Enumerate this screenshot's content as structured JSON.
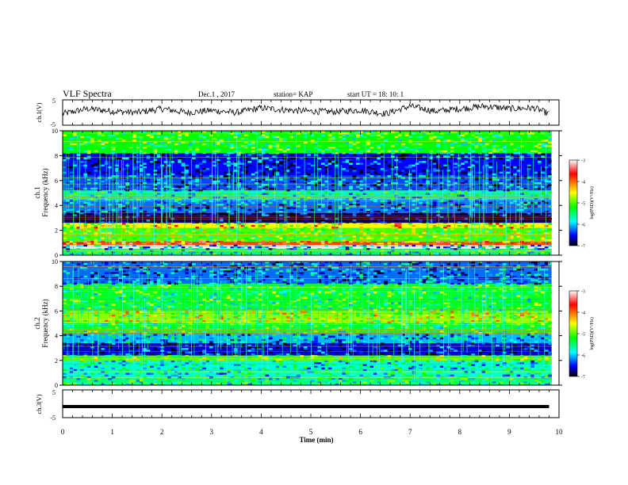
{
  "header": {
    "title": "VLF Spectra",
    "date": "Dec.1 , 2017",
    "station": "station= KAP",
    "start": "start  UT =  18: 10: 1"
  },
  "xaxis": {
    "label": "Time (min)",
    "ticks": [
      "0",
      "1",
      "2",
      "3",
      "4",
      "5",
      "6",
      "7",
      "8",
      "9",
      "10"
    ]
  },
  "ch1v": {
    "label": "ch.1(V)",
    "ticks": {
      "top": "5",
      "bottom": "-5"
    }
  },
  "spec1": {
    "channel": "ch.1",
    "ylabel": "Frequency (kHz)",
    "ticks": [
      "0",
      "2",
      "4",
      "6",
      "8",
      "10"
    ]
  },
  "spec2": {
    "channel": "ch.2",
    "ylabel": "Frequency (kHz)",
    "ticks": [
      "0",
      "2",
      "4",
      "6",
      "8",
      "10"
    ]
  },
  "ch3v": {
    "label": "ch.3(V)",
    "ticks": {
      "top": "5",
      "bottom": "-5"
    }
  },
  "colorbar": {
    "label": "log(PSD)(V²/Hz)",
    "ticks": [
      "-3",
      "-4",
      "-5",
      "-6",
      "-7"
    ],
    "colors": [
      "#ffffff",
      "#ff0000",
      "#ffff00",
      "#00ff00",
      "#00ffff",
      "#0000ff",
      "#000000"
    ]
  },
  "chart_data": [
    {
      "type": "line",
      "title": "VLF Spectra",
      "ylabel": "ch.1(V)",
      "xlabel": "Time (min)",
      "xlim": [
        0,
        10
      ],
      "ylim": [
        -5,
        5
      ],
      "x": [
        0,
        0.5,
        1,
        1.5,
        2,
        2.5,
        3,
        3.5,
        4,
        4.5,
        5,
        5.5,
        6,
        6.5,
        7,
        7.5,
        8,
        8.5,
        9,
        9.5,
        9.8
      ],
      "values": [
        -0.5,
        1.5,
        0.5,
        0,
        1.5,
        0,
        0.8,
        0,
        1.8,
        1,
        0.5,
        0.3,
        1,
        -0.5,
        2.5,
        0.5,
        1.5,
        2.5,
        1.5,
        1.8,
        -0.5
      ]
    },
    {
      "type": "heatmap",
      "ylabel": "ch.1 Frequency (kHz)",
      "xlim": [
        0,
        10
      ],
      "ylim": [
        0,
        10
      ],
      "colorbar_range": [
        -7,
        -3
      ],
      "bands_khz": [
        {
          "from": 0,
          "to": 0.5,
          "log_psd": -5.5
        },
        {
          "from": 0.8,
          "to": 1.1,
          "log_psd": -4
        },
        {
          "from": 1.1,
          "to": 2.2,
          "log_psd": -5
        },
        {
          "from": 2.2,
          "to": 2.6,
          "log_psd": -4.5
        },
        {
          "from": 2.6,
          "to": 3.4,
          "log_psd": -6.8
        },
        {
          "from": 3.4,
          "to": 4.5,
          "log_psd": -6.2
        },
        {
          "from": 4.5,
          "to": 5.2,
          "log_psd": -5.6
        },
        {
          "from": 5.2,
          "to": 6.4,
          "log_psd": -6.3
        },
        {
          "from": 6.4,
          "to": 8.2,
          "log_psd": -6.5
        },
        {
          "from": 8.2,
          "to": 10,
          "log_psd": -5.2
        }
      ]
    },
    {
      "type": "heatmap",
      "ylabel": "ch.2 Frequency (kHz)",
      "xlim": [
        0,
        10
      ],
      "ylim": [
        0,
        10
      ],
      "colorbar_range": [
        -7,
        -3
      ],
      "bands_khz": [
        {
          "from": 0,
          "to": 0.6,
          "log_psd": -5.5
        },
        {
          "from": 0.6,
          "to": 2.0,
          "log_psd": -5.7
        },
        {
          "from": 2.0,
          "to": 2.4,
          "log_psd": -5.0
        },
        {
          "from": 2.4,
          "to": 3.4,
          "log_psd": -6.6
        },
        {
          "from": 3.4,
          "to": 4.2,
          "log_psd": -6.0
        },
        {
          "from": 4.2,
          "to": 5.0,
          "log_psd": -5.3
        },
        {
          "from": 5.0,
          "to": 6.0,
          "log_psd": -4.8
        },
        {
          "from": 6.0,
          "to": 8.2,
          "log_psd": -5.3
        },
        {
          "from": 8.2,
          "to": 10,
          "log_psd": -6.2
        }
      ]
    },
    {
      "type": "line",
      "ylabel": "ch.3(V)",
      "xlim": [
        0,
        10
      ],
      "ylim": [
        -5,
        5
      ],
      "x": [
        0,
        9.8
      ],
      "values": [
        -1,
        -1
      ]
    }
  ]
}
